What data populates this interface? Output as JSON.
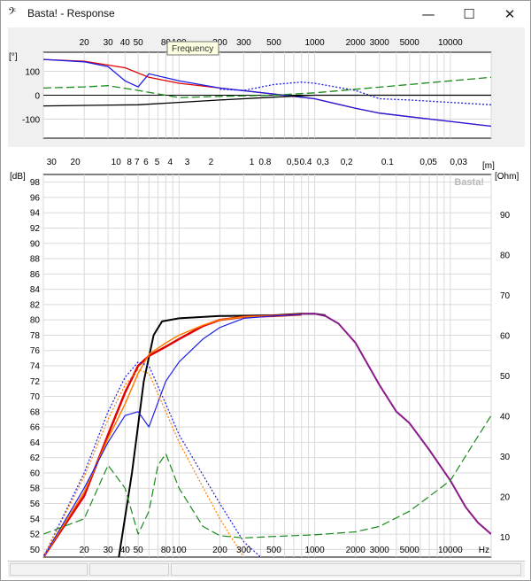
{
  "window": {
    "icon": "basta-logo-icon",
    "title": "Basta! - Response",
    "minimize_glyph": "—",
    "maximize_glyph": "☐",
    "close_glyph": "✕"
  },
  "tooltip": "Frequency",
  "watermark": "Basta!",
  "colors": {
    "red": "#e00000",
    "orange": "#ff7f00",
    "blue": "#1e1ee6",
    "green": "#1a8a1a",
    "black": "#000000",
    "purple": "#8a1a8a"
  },
  "chart_data": [
    {
      "type": "line",
      "ylabel": "[°]",
      "yticks": [
        100,
        0,
        -100
      ],
      "ylim": [
        -180,
        180
      ],
      "xscale": "log",
      "xlim": [
        10,
        20000
      ],
      "xticks": [
        20,
        30,
        40,
        50,
        80,
        100,
        200,
        300,
        500,
        1000,
        2000,
        3000,
        5000,
        10000
      ],
      "xtick_labels": [
        "20",
        "30",
        "40",
        "50",
        "80",
        "100",
        "200",
        "300",
        "500",
        "1000",
        "2000",
        "3000",
        "5000",
        "10000"
      ],
      "grid": true,
      "series": [
        {
          "color": "red",
          "x": [
            10,
            20,
            40,
            60,
            100,
            200,
            500,
            1000,
            2000,
            3000,
            5000,
            10000,
            20000
          ],
          "y": [
            150,
            142,
            115,
            75,
            50,
            30,
            5,
            -15,
            -55,
            -75,
            -90,
            -110,
            -130
          ]
        },
        {
          "color": "blue",
          "x": [
            10,
            20,
            30,
            40,
            50,
            60,
            100,
            200,
            500,
            1000,
            2000,
            3000,
            5000,
            10000,
            20000
          ],
          "y": [
            150,
            140,
            120,
            60,
            35,
            90,
            60,
            30,
            5,
            -15,
            -55,
            -75,
            -90,
            -110,
            -130
          ]
        },
        {
          "color": "blue",
          "dash": "dot",
          "x": [
            200,
            300,
            500,
            800,
            1000,
            2000,
            3000,
            5000,
            10000,
            20000
          ],
          "y": [
            25,
            20,
            45,
            55,
            50,
            20,
            -15,
            -20,
            -30,
            -40
          ]
        },
        {
          "color": "green",
          "dash": "long",
          "x": [
            10,
            20,
            30,
            50,
            100,
            200,
            500,
            1000,
            2000,
            5000,
            10000,
            20000
          ],
          "y": [
            30,
            35,
            40,
            20,
            -10,
            -5,
            0,
            10,
            25,
            45,
            60,
            75
          ]
        },
        {
          "color": "black",
          "x": [
            10,
            50,
            100,
            200,
            500,
            1000,
            3000,
            10000,
            20000
          ],
          "y": [
            -45,
            -40,
            -30,
            -20,
            -8,
            0,
            0,
            0,
            0
          ]
        }
      ]
    },
    {
      "type": "line",
      "ylabel": "[dB]",
      "y2label": "[Ohm]",
      "top_axis_label": "[m]",
      "xlabel": "Hz",
      "xscale": "log",
      "xlim": [
        10,
        20000
      ],
      "ylim": [
        49,
        99
      ],
      "y2lim": [
        5,
        100
      ],
      "xticks": [
        20,
        30,
        40,
        50,
        80,
        100,
        200,
        300,
        500,
        1000,
        2000,
        3000,
        5000,
        10000
      ],
      "xtick_labels": [
        "20",
        "30",
        "40",
        "50",
        "80",
        "100",
        "200",
        "300",
        "500",
        "1000",
        "2000",
        "3000",
        "5000",
        "10000"
      ],
      "yticks": [
        98,
        96,
        94,
        92,
        90,
        88,
        86,
        84,
        82,
        80,
        78,
        76,
        74,
        72,
        70,
        68,
        66,
        64,
        62,
        60,
        58,
        56,
        54,
        52,
        50
      ],
      "y2ticks": [
        90,
        80,
        70,
        60,
        50,
        40,
        30,
        20,
        10
      ],
      "top_ticks": [
        {
          "label": "30",
          "x": 11.5
        },
        {
          "label": "20",
          "x": 17.2
        },
        {
          "label": "10",
          "x": 34.4
        },
        {
          "label": "8",
          "x": 43
        },
        {
          "label": "7",
          "x": 49
        },
        {
          "label": "6",
          "x": 57
        },
        {
          "label": "5",
          "x": 69
        },
        {
          "label": "4",
          "x": 86
        },
        {
          "label": "3",
          "x": 115
        },
        {
          "label": "2",
          "x": 172
        },
        {
          "label": "1",
          "x": 344
        },
        {
          "label": "0.8",
          "x": 430
        },
        {
          "label": "0,5",
          "x": 690
        },
        {
          "label": "0.4",
          "x": 860
        },
        {
          "label": "0,3",
          "x": 1150
        },
        {
          "label": "0,2",
          "x": 1720
        },
        {
          "label": "0.1",
          "x": 3440
        },
        {
          "label": "0,05",
          "x": 6900
        },
        {
          "label": "0,03",
          "x": 11500
        }
      ],
      "grid": true,
      "series": [
        {
          "color": "black",
          "width": 2,
          "x": [
            36,
            45,
            55,
            65,
            75,
            100,
            200,
            500,
            800,
            1000,
            1200
          ],
          "y": [
            49,
            60,
            72,
            78,
            79.8,
            80.2,
            80.5,
            80.6,
            80.8,
            80.8,
            80.6
          ]
        },
        {
          "color": "red",
          "width": 2.5,
          "x": [
            10,
            20,
            30,
            40,
            50,
            60,
            80,
            100,
            150,
            200,
            300,
            500,
            800
          ],
          "y": [
            49,
            57,
            65,
            70.5,
            74,
            75.3,
            76.5,
            77.5,
            79.2,
            80,
            80.4,
            80.5,
            80.7
          ]
        },
        {
          "color": "orange",
          "width": 1.5,
          "x": [
            10,
            20,
            30,
            40,
            50,
            60,
            80,
            100,
            150,
            200,
            300,
            500,
            800
          ],
          "y": [
            49,
            57.5,
            64.5,
            69,
            73,
            75.5,
            77,
            78,
            79.3,
            80,
            80.4,
            80.5,
            80.7
          ]
        },
        {
          "color": "blue",
          "width": 1.2,
          "x": [
            10,
            20,
            30,
            40,
            50,
            60,
            80,
            100,
            150,
            200,
            300,
            500,
            800
          ],
          "y": [
            49,
            58,
            64,
            67.5,
            68,
            66,
            72,
            74.5,
            77.5,
            79,
            80.2,
            80.5,
            80.7
          ]
        },
        {
          "color": "purple",
          "width": 2,
          "x": [
            800,
            1000,
            1200,
            1500,
            2000,
            3000,
            4000,
            5000,
            7000,
            10000,
            13000,
            16000,
            20000
          ],
          "y": [
            80.8,
            80.8,
            80.5,
            79.5,
            77,
            71.5,
            68,
            66.5,
            63,
            59,
            55.5,
            53.5,
            52
          ]
        },
        {
          "color": "blue",
          "dash": "dot",
          "x": [
            10,
            20,
            30,
            40,
            50,
            60,
            80,
            100,
            200,
            300,
            400
          ],
          "y": [
            49,
            60,
            68,
            72.5,
            74.5,
            74,
            69,
            65,
            56,
            51,
            49
          ]
        },
        {
          "color": "orange",
          "dash": "dot",
          "x": [
            10,
            20,
            30,
            40,
            50,
            60,
            80,
            100,
            200,
            300
          ],
          "y": [
            49,
            59.5,
            67,
            71.5,
            73.5,
            73,
            68,
            64,
            54,
            49
          ]
        },
        {
          "color": "green",
          "dash": "long",
          "x": [
            10,
            20,
            30,
            40,
            50,
            60,
            70,
            80,
            100,
            150,
            200,
            300,
            500,
            1000,
            2000,
            3000,
            5000,
            10000,
            15000,
            20000
          ],
          "y": [
            52,
            54,
            61,
            58,
            52,
            55,
            61,
            62.5,
            58,
            53,
            51.8,
            51.5,
            51.7,
            51.9,
            52.3,
            53,
            55,
            59,
            64,
            67.5
          ]
        }
      ]
    }
  ]
}
